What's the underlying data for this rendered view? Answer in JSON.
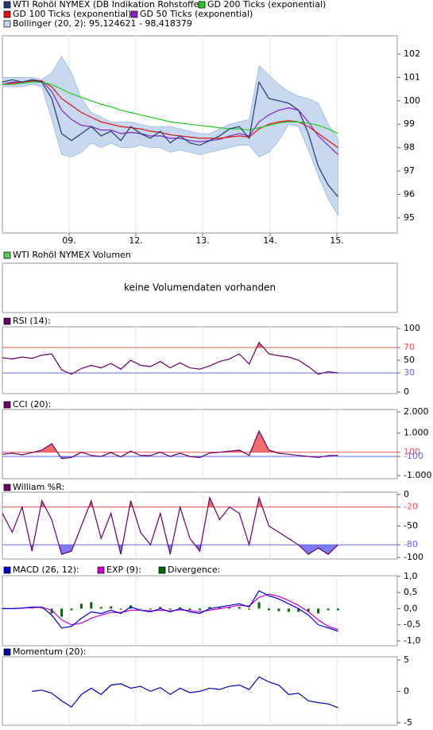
{
  "chart_data": [
    {
      "type": "line",
      "x": [
        0,
        2.5,
        5,
        7.5,
        10,
        12.5,
        15,
        17.5,
        20,
        22.5,
        25,
        27.5,
        30,
        32.5,
        35,
        37.5,
        40,
        42.5,
        45,
        47.5,
        50,
        52.5,
        55,
        57.5,
        60,
        62.5,
        65,
        67.5,
        70,
        72.5,
        75,
        77.5,
        80,
        82.5,
        85
      ],
      "xlim": [
        0,
        100
      ],
      "xticks": [
        {
          "value": 16.9,
          "label": "09."
        },
        {
          "value": 33.8,
          "label": "12."
        },
        {
          "value": 50.7,
          "label": "13."
        },
        {
          "value": 67.8,
          "label": "14."
        },
        {
          "value": 84.7,
          "label": "15."
        }
      ],
      "ylim": [
        94.35,
        102.78
      ],
      "yticks": [
        95,
        96,
        97,
        98,
        99,
        100,
        101,
        102
      ],
      "grid": true,
      "series": [
        {
          "name": "WTI Rohöl NYMEX (DB Indikation Rohstoffe)",
          "color": "#1e3a6e",
          "values": [
            100.8,
            100.9,
            100.8,
            100.9,
            100.8,
            100.1,
            98.6,
            98.3,
            98.6,
            98.9,
            98.5,
            98.7,
            98.3,
            98.9,
            98.6,
            98.4,
            98.7,
            98.2,
            98.5,
            98.2,
            98.1,
            98.3,
            98.5,
            98.8,
            98.9,
            98.4,
            100.8,
            100.1,
            100.0,
            99.9,
            99.6,
            98.6,
            97.2,
            96.4,
            95.9
          ]
        },
        {
          "name": "GD 200 Ticks (exponential)",
          "color": "#22cc22",
          "values": [
            100.7,
            100.7,
            100.75,
            100.8,
            100.8,
            100.7,
            100.5,
            100.3,
            100.15,
            100.0,
            99.85,
            99.75,
            99.6,
            99.5,
            99.4,
            99.3,
            99.2,
            99.1,
            99.05,
            99.0,
            98.95,
            98.9,
            98.85,
            98.8,
            98.8,
            98.75,
            98.85,
            98.95,
            99.05,
            99.1,
            99.1,
            99.05,
            98.95,
            98.8,
            98.6
          ]
        },
        {
          "name": "GD 100 Ticks (exponential)",
          "color": "#dd1111",
          "values": [
            100.7,
            100.75,
            100.8,
            100.85,
            100.85,
            100.6,
            100.1,
            99.8,
            99.5,
            99.3,
            99.1,
            99.0,
            98.9,
            98.85,
            98.8,
            98.7,
            98.65,
            98.55,
            98.5,
            98.45,
            98.4,
            98.4,
            98.4,
            98.45,
            98.5,
            98.45,
            98.8,
            99.0,
            99.1,
            99.15,
            99.1,
            98.9,
            98.6,
            98.3,
            98.0
          ]
        },
        {
          "name": "GD 50 Ticks (exponential)",
          "color": "#8822cc",
          "values": [
            100.7,
            100.8,
            100.8,
            100.9,
            100.85,
            100.4,
            99.6,
            99.2,
            98.95,
            98.9,
            98.75,
            98.75,
            98.6,
            98.65,
            98.6,
            98.5,
            98.5,
            98.4,
            98.4,
            98.3,
            98.25,
            98.3,
            98.35,
            98.5,
            98.6,
            98.5,
            99.1,
            99.4,
            99.6,
            99.7,
            99.6,
            99.1,
            98.5,
            98.1,
            97.7
          ]
        },
        {
          "name": "Bollinger (20, 2): 95,124621 - 98,418379",
          "color": "#c8d8ee",
          "type": "band",
          "upper": [
            101,
            101,
            101,
            101,
            100.9,
            101.2,
            101.9,
            101.2,
            100.1,
            99.5,
            99.3,
            99.1,
            99.1,
            99.1,
            99.0,
            98.9,
            98.9,
            98.9,
            98.8,
            98.7,
            98.6,
            98.6,
            98.8,
            99.0,
            99.1,
            99.2,
            101.5,
            101.1,
            100.7,
            100.4,
            100.2,
            100.1,
            99.9,
            99.0,
            98.4
          ],
          "lower": [
            100.6,
            100.6,
            100.6,
            100.7,
            100.6,
            99.2,
            97.7,
            97.6,
            97.8,
            98.2,
            98.0,
            98.2,
            98.0,
            98.0,
            98.1,
            98.0,
            98.0,
            97.8,
            97.9,
            97.8,
            97.7,
            97.8,
            97.9,
            98.0,
            98.1,
            98.1,
            97.6,
            97.8,
            98.3,
            99.0,
            98.9,
            97.9,
            96.8,
            95.8,
            95.1
          ]
        }
      ]
    },
    {
      "type": "bar",
      "title": "WTI Rohöl NYMEX Volumen",
      "color": "#55cc55",
      "message": "keine Volumendaten vorhanden",
      "grid": false
    },
    {
      "type": "line",
      "ylim": [
        -2.5,
        102.5
      ],
      "yticks": [
        0,
        30,
        50,
        70,
        100
      ],
      "grid": true,
      "bands": [
        {
          "value": 70,
          "color": "#ee5555",
          "side": "above"
        },
        {
          "value": 30,
          "color": "#6666ee",
          "side": "below"
        }
      ],
      "series": [
        {
          "name": "RSI (14):",
          "color": "#660066",
          "values": [
            54,
            52,
            55,
            53,
            58,
            60,
            35,
            28,
            37,
            42,
            38,
            45,
            36,
            50,
            42,
            40,
            48,
            38,
            46,
            38,
            36,
            41,
            48,
            52,
            60,
            44,
            78,
            60,
            57,
            55,
            50,
            40,
            28,
            32,
            30
          ]
        }
      ]
    },
    {
      "type": "line",
      "ylim": [
        -1150,
        2112
      ],
      "grid": true,
      "yticks": [
        {
          "value": 2000,
          "label": "2.000"
        },
        {
          "value": 1000,
          "label": "1.000"
        },
        100,
        -100,
        {
          "value": -1000,
          "label": "-1.000"
        }
      ],
      "bands": [
        {
          "value": 100,
          "color": "#ee5555",
          "side": "above"
        },
        {
          "value": -100,
          "color": "#6666ee",
          "side": "below"
        }
      ],
      "series": [
        {
          "name": "CCI (20):",
          "color": "#660066",
          "values": [
            0,
            50,
            -20,
            80,
            200,
            500,
            -200,
            -150,
            100,
            -50,
            -100,
            80,
            -120,
            150,
            -50,
            -60,
            100,
            -100,
            50,
            -100,
            -150,
            60,
            100,
            150,
            200,
            -50,
            1100,
            200,
            50,
            0,
            -50,
            -100,
            -150,
            -60,
            -50
          ]
        }
      ]
    },
    {
      "type": "line",
      "ylim": [
        -102.5,
        3.5
      ],
      "yticks": [
        0,
        -20,
        -50,
        -80,
        -100
      ],
      "grid": true,
      "bands": [
        {
          "value": -20,
          "color": "#ee5555",
          "side": "above"
        },
        {
          "value": -80,
          "color": "#6666ee",
          "side": "below"
        }
      ],
      "series": [
        {
          "name": "William %R:",
          "color": "#660066",
          "values": [
            -30,
            -60,
            -20,
            -90,
            -10,
            -40,
            -95,
            -90,
            -50,
            -10,
            -70,
            -30,
            -95,
            -10,
            -60,
            -80,
            -30,
            -95,
            -20,
            -70,
            -90,
            -5,
            -40,
            -20,
            -30,
            -80,
            -5,
            -50,
            -60,
            -70,
            -80,
            -95,
            -85,
            -95,
            -80
          ]
        }
      ]
    },
    {
      "type": "line",
      "ylim": [
        -1.15,
        1.02
      ],
      "grid": true,
      "yticks": [
        {
          "value": 1,
          "label": "1,0"
        },
        {
          "value": 0.5,
          "label": "0,5"
        },
        {
          "value": 0,
          "label": "0,0"
        },
        {
          "value": -0.5,
          "label": "-0,5"
        },
        {
          "value": -1,
          "label": "-1,0"
        }
      ],
      "series": [
        {
          "name": "MACD (26, 12):",
          "color": "#0000cc",
          "values": [
            0,
            0,
            0.02,
            0.05,
            0.05,
            -0.2,
            -0.6,
            -0.55,
            -0.3,
            -0.1,
            -0.15,
            -0.05,
            -0.15,
            0.05,
            -0.05,
            -0.1,
            0,
            -0.1,
            0,
            -0.1,
            -0.15,
            0,
            0.05,
            0.1,
            0.15,
            0.05,
            0.55,
            0.4,
            0.3,
            0.15,
            0,
            -0.2,
            -0.5,
            -0.6,
            -0.7
          ]
        },
        {
          "name": "EXP (9):",
          "color": "#cc00cc",
          "values": [
            0,
            0,
            0.01,
            0.03,
            0.04,
            -0.05,
            -0.35,
            -0.5,
            -0.45,
            -0.3,
            -0.2,
            -0.12,
            -0.12,
            -0.05,
            -0.05,
            -0.07,
            -0.05,
            -0.07,
            -0.04,
            -0.06,
            -0.1,
            -0.05,
            0,
            0.05,
            0.1,
            0.08,
            0.35,
            0.45,
            0.38,
            0.25,
            0.1,
            -0.1,
            -0.35,
            -0.55,
            -0.65
          ]
        },
        {
          "name": "Divergence:",
          "color": "#006600",
          "type": "bar",
          "values": [
            0,
            0,
            0.01,
            0.02,
            0.01,
            -0.15,
            -0.25,
            -0.05,
            0.15,
            0.2,
            0.05,
            0.07,
            -0.03,
            0.1,
            0,
            -0.03,
            0.05,
            -0.03,
            0.04,
            -0.04,
            -0.05,
            0.05,
            0.05,
            0.05,
            0.05,
            -0.03,
            0.2,
            -0.05,
            -0.08,
            -0.1,
            -0.1,
            -0.1,
            -0.15,
            -0.05,
            -0.05
          ]
        }
      ]
    },
    {
      "type": "line",
      "ylim": [
        -5.4,
        5.5
      ],
      "yticks": [
        5,
        0,
        -5
      ],
      "grid": true,
      "series": [
        {
          "name": "Momentum (20):",
          "color": "#0000aa",
          "values": [
            null,
            null,
            null,
            0,
            0.2,
            -0.3,
            -1.5,
            -2.5,
            -0.5,
            0.5,
            -0.5,
            1,
            1.2,
            0.5,
            0.8,
            0,
            0.6,
            -0.5,
            0.5,
            -0.2,
            0,
            0.5,
            0.3,
            0.8,
            1,
            0.3,
            2.3,
            1.5,
            1,
            -0.5,
            -0.3,
            -1.5,
            -1.8,
            -2,
            -2.6
          ]
        }
      ]
    }
  ]
}
